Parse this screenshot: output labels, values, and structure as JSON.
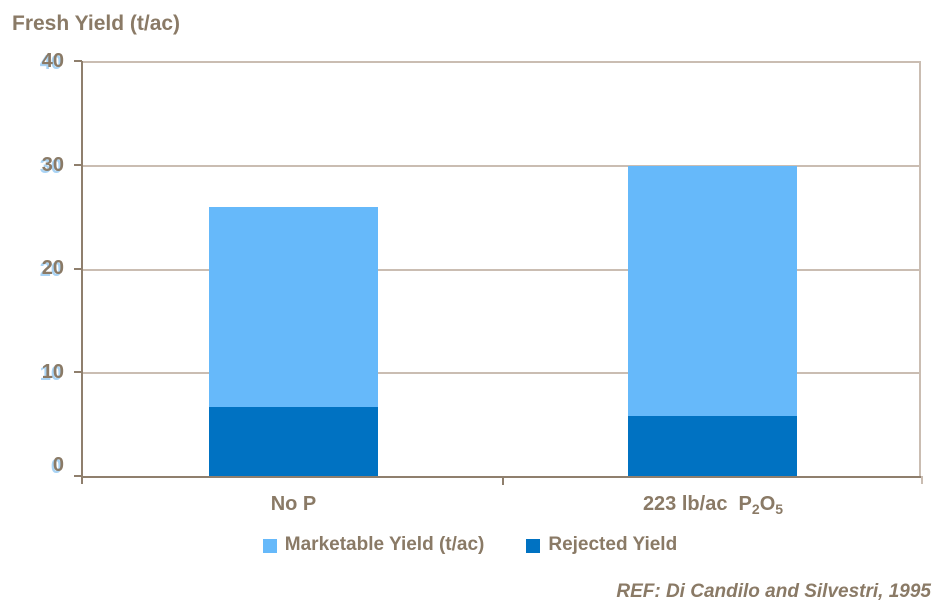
{
  "title": "Fresh Yield (t/ac)",
  "yaxis": {
    "ticks": [
      "40",
      "30",
      "20",
      "10",
      "0"
    ]
  },
  "xaxis": {
    "cat1": "No P",
    "cat2": {
      "base1": "223 lb/ac  P",
      "sub1": "2",
      "base2": "O",
      "sub2": "5"
    }
  },
  "legend": {
    "items": [
      {
        "label": "Marketable Yield (t/ac)",
        "color": "#66b9fa"
      },
      {
        "label": "Rejected Yield",
        "color": "#0072c2"
      }
    ]
  },
  "footer_ref": "REF: Di Candilo and Silvestri, 1995",
  "chart_data": {
    "type": "bar",
    "stacked": true,
    "title": "Fresh Yield (t/ac)",
    "categories": [
      "No P",
      "223 lb/ac P2O5"
    ],
    "series": [
      {
        "name": "Rejected Yield",
        "color": "#0072c2",
        "values": [
          6.7,
          5.8
        ]
      },
      {
        "name": "Marketable Yield (t/ac)",
        "color": "#66b9fa",
        "values": [
          19.2,
          24.1
        ]
      }
    ],
    "totals": [
      25.9,
      29.9
    ],
    "ylabel": "Fresh Yield (t/ac)",
    "ylim": [
      0,
      40
    ],
    "yticks": [
      0,
      10,
      20,
      30,
      40
    ],
    "grid": true,
    "legend_position": "bottom",
    "source": "REF: Di Candilo and Silvestri, 1995"
  }
}
